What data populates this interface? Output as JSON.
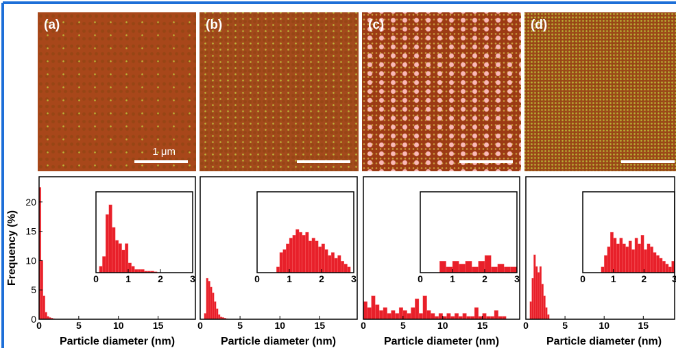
{
  "panels": [
    {
      "label": "(a)",
      "scale": "1 μm"
    },
    {
      "label": "(b)"
    },
    {
      "label": "(c)"
    },
    {
      "label": "(d)"
    }
  ],
  "chart_data": [
    {
      "type": "histogram",
      "ylabel": "Frequency (%)",
      "xlabel": "Particle diameter (nm)",
      "color": "#e8202a",
      "xlim": [
        0,
        19.7
      ],
      "xticks": [
        0,
        5,
        10,
        15
      ],
      "ylim": [
        0,
        24.3
      ],
      "yticks": [
        0,
        5,
        10,
        15,
        20
      ],
      "bins": [
        0,
        0.25,
        0.5,
        0.75,
        1,
        1.25,
        1.5,
        1.75,
        2
      ],
      "values": [
        22.5,
        10,
        4,
        1.2,
        0.5,
        0.3,
        0.2,
        0.1
      ],
      "inset": {
        "type": "histogram",
        "xlim": [
          0,
          3
        ],
        "xticks": [
          0,
          1,
          2,
          3
        ],
        "ylim": [
          0,
          25
        ],
        "bins": [
          0.1,
          0.2,
          0.3,
          0.4,
          0.5,
          0.6,
          0.7,
          0.8,
          0.9,
          1.0,
          1.1,
          1.2,
          1.3,
          1.4,
          1.5,
          1.6,
          1.7,
          1.8,
          1.9
        ],
        "values": [
          2,
          5,
          18,
          21,
          14,
          10,
          9,
          7,
          9,
          3,
          2,
          1,
          1,
          1,
          0.5,
          0.5,
          0.5,
          0.3
        ]
      }
    },
    {
      "type": "histogram",
      "xlabel": "Particle diameter (nm)",
      "color": "#e8202a",
      "xlim": [
        0,
        19.7
      ],
      "xticks": [
        0,
        5,
        10,
        15
      ],
      "ylim": [
        0,
        24.3
      ],
      "bins": [
        0.5,
        0.75,
        1,
        1.25,
        1.5,
        1.75,
        2,
        2.25,
        2.5,
        2.75,
        3,
        3.25,
        3.5
      ],
      "values": [
        1,
        7,
        6.5,
        5.5,
        4.5,
        3,
        1.8,
        0.8,
        0.4,
        0.3,
        0.2,
        0.1
      ],
      "inset": {
        "type": "histogram",
        "xlim": [
          0,
          3
        ],
        "xticks": [
          0,
          1,
          2,
          3
        ],
        "ylim": [
          0,
          14
        ],
        "bins": [
          0.6,
          0.7,
          0.8,
          0.9,
          1.0,
          1.1,
          1.2,
          1.3,
          1.4,
          1.5,
          1.6,
          1.7,
          1.8,
          1.9,
          2.0,
          2.1,
          2.2,
          2.3,
          2.4,
          2.5,
          2.6,
          2.7,
          2.8,
          2.9
        ],
        "values": [
          1,
          3.5,
          4,
          5,
          6,
          6.5,
          7.5,
          7,
          6.5,
          7,
          5.5,
          6,
          5.5,
          4.5,
          5,
          4,
          3,
          3.5,
          2.5,
          3,
          2,
          1.5,
          1
        ]
      }
    },
    {
      "type": "histogram",
      "xlabel": "Particle diameter (nm)",
      "color": "#e8202a",
      "xlim": [
        0,
        19.7
      ],
      "xticks": [
        0,
        5,
        10,
        15
      ],
      "ylim": [
        0,
        24.3
      ],
      "bins": [
        0,
        0.5,
        1,
        1.5,
        2,
        2.5,
        3,
        3.5,
        4,
        4.5,
        5,
        5.5,
        6,
        6.5,
        7,
        7.5,
        8,
        8.5,
        9,
        9.5,
        10,
        10.5,
        11,
        11.5,
        12,
        12.5,
        13,
        13.5,
        14,
        14.5,
        15,
        15.5,
        16,
        16.5,
        17,
        17.5,
        18
      ],
      "values": [
        3,
        2,
        4,
        2.5,
        1.5,
        2,
        1,
        1.5,
        1,
        2,
        1.5,
        1,
        2,
        3.5,
        1,
        4,
        1.5,
        1,
        0.5,
        1,
        0.5,
        1,
        0.5,
        1,
        0.5,
        1,
        0.5,
        0.5,
        2,
        0.5,
        1,
        0.5,
        0.5,
        1.5,
        0.5,
        0.5
      ],
      "inset": {
        "type": "histogram",
        "xlim": [
          0,
          3
        ],
        "xticks": [
          0,
          1,
          2,
          3
        ],
        "ylim": [
          0,
          14
        ],
        "bins": [
          0.6,
          0.8,
          1.0,
          1.2,
          1.4,
          1.6,
          1.8,
          2.0,
          2.2,
          2.4,
          2.6,
          2.8,
          3.0
        ],
        "values": [
          2,
          1,
          2,
          1.5,
          2,
          1,
          2,
          3,
          1,
          1.5,
          1,
          1
        ]
      }
    },
    {
      "type": "histogram",
      "xlabel": "Particle diameter (nm)",
      "color": "#e8202a",
      "xlim": [
        0,
        19
      ],
      "xticks": [
        0,
        5,
        10,
        15
      ],
      "ylim": [
        0,
        24.3
      ],
      "bins": [
        0.5,
        0.75,
        1,
        1.25,
        1.5,
        1.75,
        2,
        2.25,
        2.5,
        2.75,
        3
      ],
      "values": [
        3,
        7,
        11,
        9,
        8,
        9,
        6,
        4,
        2,
        0.8
      ],
      "inset": {
        "type": "histogram",
        "xlim": [
          0,
          3
        ],
        "xticks": [
          0,
          1,
          2,
          3
        ],
        "ylim": [
          0,
          14
        ],
        "bins": [
          0.6,
          0.7,
          0.8,
          0.9,
          1.0,
          1.1,
          1.2,
          1.3,
          1.4,
          1.5,
          1.6,
          1.7,
          1.8,
          1.9,
          2.0,
          2.1,
          2.2,
          2.3,
          2.4,
          2.5,
          2.6,
          2.7,
          2.8,
          2.9,
          3.0
        ],
        "values": [
          1,
          3,
          4.5,
          7,
          6,
          5,
          6,
          5,
          4.5,
          5.5,
          4,
          6,
          5,
          6.5,
          4,
          5,
          4.5,
          3.5,
          3,
          2.5,
          2,
          1.5,
          1,
          2
        ]
      }
    }
  ]
}
